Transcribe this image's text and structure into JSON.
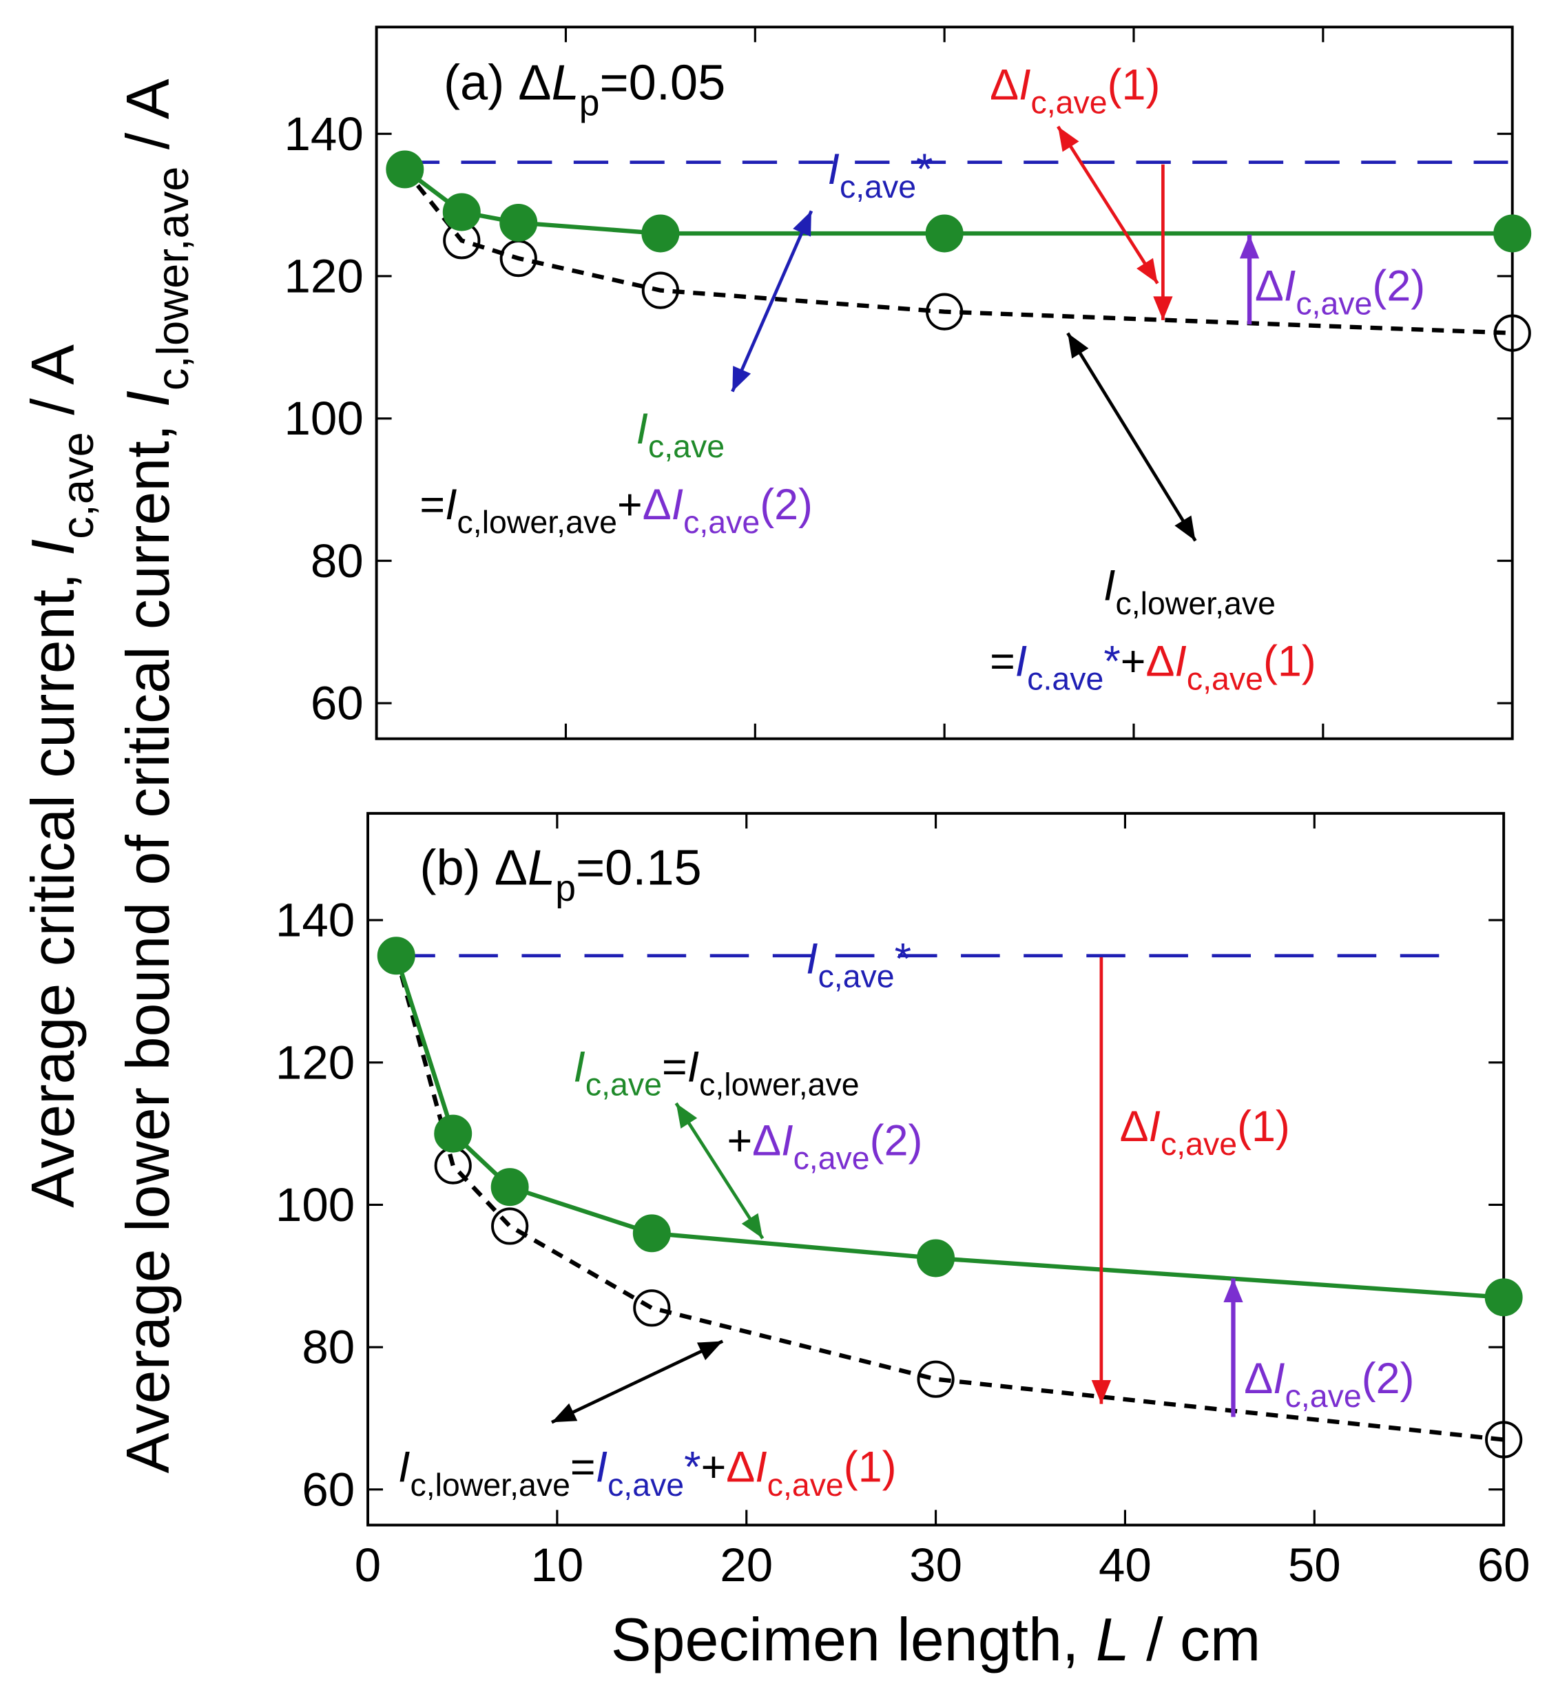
{
  "chart_data": [
    {
      "type": "line",
      "ylabel_lines": [
        [
          {
            "t": "Average critical current, "
          },
          {
            "t": "I",
            "i": true
          },
          {
            "t": "c,ave",
            "sub": true
          },
          {
            "t": " / A"
          }
        ],
        [
          {
            "t": "Average lower bound of critical current, "
          },
          {
            "t": "I",
            "i": true
          },
          {
            "t": "c,lower,ave",
            "sub": true
          },
          {
            "t": " / A"
          }
        ]
      ],
      "x": [
        1.5,
        4.5,
        7.5,
        15,
        30,
        60
      ],
      "series": [
        {
          "color": "#1f8a2a",
          "marker": "filled",
          "dashed": false,
          "values": [
            135,
            129,
            127.5,
            126,
            126,
            126
          ]
        },
        {
          "color": "#000000",
          "marker": "open",
          "dashed": true,
          "values": [
            135,
            125,
            122.5,
            118,
            115,
            112
          ]
        }
      ],
      "reference_line": {
        "value": 136,
        "color": "#1f1fb4"
      },
      "xlim": [
        0,
        60
      ],
      "xticks": [
        0,
        10,
        20,
        30,
        40,
        50,
        60
      ],
      "show_xtick_labels": false,
      "ylim": [
        55,
        155
      ],
      "yticks": [
        60,
        80,
        100,
        120,
        140
      ],
      "annotations": [
        {
          "parts": [
            {
              "t": "(a) Δ"
            },
            {
              "t": "L",
              "i": true
            },
            {
              "t": "p",
              "sub": true
            },
            {
              "t": "=0.05"
            }
          ]
        },
        {
          "parts": [
            {
              "t": "I",
              "i": true,
              "color": "#1f1fb4"
            },
            {
              "t": "c,ave",
              "sub": true,
              "color": "#1f1fb4"
            },
            {
              "t": "*",
              "color": "#1f1fb4"
            }
          ]
        },
        {
          "parts": [
            {
              "t": "Δ",
              "color": "#e8141b"
            },
            {
              "t": "I",
              "i": true,
              "color": "#e8141b"
            },
            {
              "t": "c,ave",
              "sub": true,
              "color": "#e8141b"
            },
            {
              "t": "(1)",
              "color": "#e8141b"
            }
          ]
        },
        {
          "parts": [
            {
              "t": "Δ",
              "color": "#7b2fd0"
            },
            {
              "t": "I",
              "i": true,
              "color": "#7b2fd0"
            },
            {
              "t": "c,ave",
              "sub": true,
              "color": "#7b2fd0"
            },
            {
              "t": "(2)",
              "color": "#7b2fd0"
            }
          ]
        },
        {
          "parts": [
            {
              "t": "I",
              "i": true,
              "color": "#1f8a2a"
            },
            {
              "t": "c,ave",
              "sub": true,
              "color": "#1f8a2a"
            }
          ]
        },
        {
          "parts": [
            {
              "t": "="
            },
            {
              "t": "I",
              "i": true
            },
            {
              "t": "c,lower,ave",
              "sub": true
            },
            {
              "t": "+"
            },
            {
              "t": "Δ",
              "color": "#7b2fd0"
            },
            {
              "t": "I",
              "i": true,
              "color": "#7b2fd0"
            },
            {
              "t": "c,ave",
              "sub": true,
              "color": "#7b2fd0"
            },
            {
              "t": "(2)",
              "color": "#7b2fd0"
            }
          ]
        },
        {
          "parts": [
            {
              "t": "I",
              "i": true
            },
            {
              "t": "c,lower,ave",
              "sub": true
            }
          ]
        },
        {
          "parts": [
            {
              "t": "="
            },
            {
              "t": "I",
              "i": true,
              "color": "#1f1fb4"
            },
            {
              "t": "c.ave",
              "sub": true,
              "color": "#1f1fb4"
            },
            {
              "t": "*",
              "color": "#1f1fb4"
            },
            {
              "t": "+"
            },
            {
              "t": "Δ",
              "color": "#e8141b"
            },
            {
              "t": "I",
              "i": true,
              "color": "#e8141b"
            },
            {
              "t": "c,ave",
              "sub": true,
              "color": "#e8141b"
            },
            {
              "t": "(1)",
              "color": "#e8141b"
            }
          ]
        }
      ]
    },
    {
      "type": "line",
      "xlabel": [
        {
          "t": "Specimen length, "
        },
        {
          "t": "L",
          "i": true
        },
        {
          "t": " / cm"
        }
      ],
      "x": [
        1.5,
        4.5,
        7.5,
        15,
        30,
        60
      ],
      "series": [
        {
          "color": "#1f8a2a",
          "marker": "filled",
          "dashed": false,
          "values": [
            135,
            110,
            102.5,
            96,
            92.5,
            87
          ]
        },
        {
          "color": "#000000",
          "marker": "open",
          "dashed": true,
          "values": [
            135,
            105.5,
            97,
            85.5,
            75.5,
            67
          ]
        }
      ],
      "reference_line": {
        "value": 135,
        "color": "#1f1fb4"
      },
      "xlim": [
        0,
        60
      ],
      "xticks": [
        0,
        10,
        20,
        30,
        40,
        50,
        60
      ],
      "show_xtick_labels": true,
      "ylim": [
        55,
        155
      ],
      "yticks": [
        60,
        80,
        100,
        120,
        140
      ],
      "annotations": [
        {
          "parts": [
            {
              "t": "(b) Δ"
            },
            {
              "t": "L",
              "i": true
            },
            {
              "t": "p",
              "sub": true
            },
            {
              "t": "=0.15"
            }
          ]
        },
        {
          "parts": [
            {
              "t": "I",
              "i": true,
              "color": "#1f1fb4"
            },
            {
              "t": "c,ave",
              "sub": true,
              "color": "#1f1fb4"
            },
            {
              "t": "*",
              "color": "#1f1fb4"
            }
          ]
        },
        {
          "parts": [
            {
              "t": "I",
              "i": true,
              "color": "#1f8a2a"
            },
            {
              "t": "c,ave",
              "sub": true,
              "color": "#1f8a2a"
            },
            {
              "t": "="
            },
            {
              "t": "I",
              "i": true
            },
            {
              "t": "c,lower,ave",
              "sub": true
            }
          ]
        },
        {
          "parts": [
            {
              "t": "+"
            },
            {
              "t": "Δ",
              "color": "#7b2fd0"
            },
            {
              "t": "I",
              "i": true,
              "color": "#7b2fd0"
            },
            {
              "t": "c,ave",
              "sub": true,
              "color": "#7b2fd0"
            },
            {
              "t": "(2)",
              "color": "#7b2fd0"
            }
          ]
        },
        {
          "parts": [
            {
              "t": "Δ",
              "color": "#e8141b"
            },
            {
              "t": "I",
              "i": true,
              "color": "#e8141b"
            },
            {
              "t": "c,ave",
              "sub": true,
              "color": "#e8141b"
            },
            {
              "t": "(1)",
              "color": "#e8141b"
            }
          ]
        },
        {
          "parts": [
            {
              "t": "Δ",
              "color": "#7b2fd0"
            },
            {
              "t": "I",
              "i": true,
              "color": "#7b2fd0"
            },
            {
              "t": "c,ave",
              "sub": true,
              "color": "#7b2fd0"
            },
            {
              "t": "(2)",
              "color": "#7b2fd0"
            }
          ]
        },
        {
          "parts": [
            {
              "t": "I",
              "i": true
            },
            {
              "t": "c,lower,ave",
              "sub": true
            },
            {
              "t": "="
            },
            {
              "t": "I",
              "i": true,
              "color": "#1f1fb4"
            },
            {
              "t": "c,ave",
              "sub": true,
              "color": "#1f1fb4"
            },
            {
              "t": "*",
              "color": "#1f1fb4"
            },
            {
              "t": "+"
            },
            {
              "t": "Δ",
              "color": "#e8141b"
            },
            {
              "t": "I",
              "i": true,
              "color": "#e8141b"
            },
            {
              "t": "c,ave",
              "sub": true,
              "color": "#e8141b"
            },
            {
              "t": "(1)",
              "color": "#e8141b"
            }
          ]
        }
      ]
    }
  ]
}
